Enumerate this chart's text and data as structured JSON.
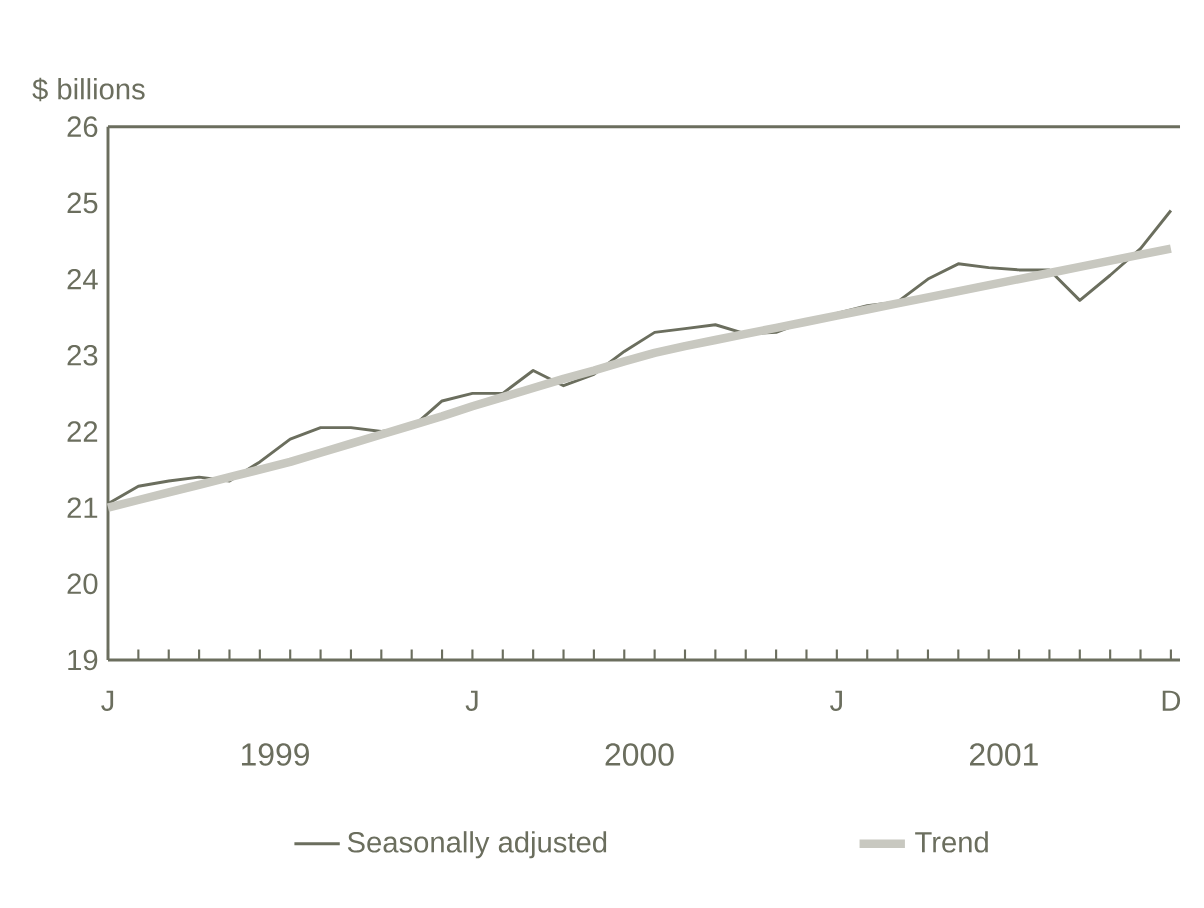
{
  "chart_data": {
    "type": "line",
    "ylabel": "$ billions",
    "categories": [
      "J",
      null,
      null,
      null,
      null,
      null,
      null,
      null,
      null,
      null,
      null,
      null,
      "J",
      null,
      null,
      null,
      null,
      null,
      null,
      null,
      null,
      null,
      null,
      null,
      "J",
      null,
      null,
      null,
      null,
      null,
      null,
      null,
      null,
      null,
      null,
      "D"
    ],
    "annotations": [
      "1999",
      "2000",
      "2001"
    ],
    "ylim": [
      19,
      26
    ],
    "yticks": [
      19,
      20,
      21,
      22,
      23,
      24,
      25,
      26
    ],
    "legend": "bottom",
    "grid": false,
    "series": [
      {
        "name": "Seasonally adjusted",
        "color": "#6b6e5e",
        "values": [
          21.05,
          21.28,
          21.35,
          21.4,
          21.35,
          21.6,
          21.9,
          22.05,
          22.05,
          22.0,
          22.05,
          22.4,
          22.5,
          22.5,
          22.8,
          22.6,
          22.75,
          23.05,
          23.3,
          23.35,
          23.4,
          23.28,
          23.3,
          23.45,
          23.55,
          23.65,
          23.7,
          24.0,
          24.2,
          24.15,
          24.12,
          24.12,
          23.72,
          24.05,
          24.4,
          24.9
        ]
      },
      {
        "name": "Trend",
        "color": "#c8c8c0",
        "values": [
          21.0,
          21.1,
          21.2,
          21.3,
          21.4,
          21.5,
          21.6,
          21.72,
          21.84,
          21.96,
          22.08,
          22.2,
          22.33,
          22.45,
          22.57,
          22.69,
          22.8,
          22.92,
          23.03,
          23.12,
          23.2,
          23.28,
          23.36,
          23.44,
          23.52,
          23.6,
          23.68,
          23.76,
          23.84,
          23.92,
          24.0,
          24.08,
          24.16,
          24.24,
          24.32,
          24.4
        ]
      }
    ]
  }
}
